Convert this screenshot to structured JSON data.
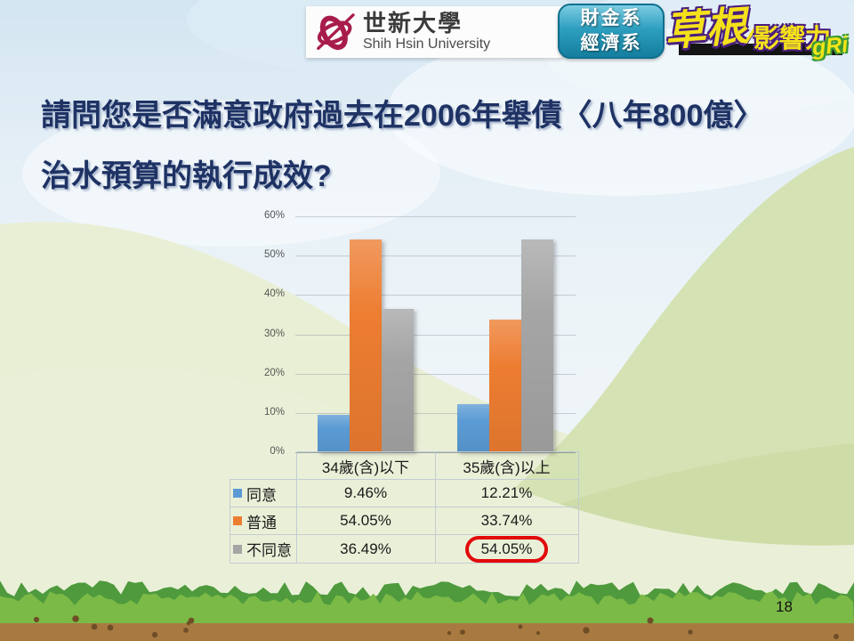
{
  "slide": {
    "page_number": "18"
  },
  "header": {
    "university": {
      "name_zh": "世新大學",
      "name_en": "Shih Hsin University",
      "logo_icon": "crimson-globe-quill",
      "logo_color": "#a81c4c"
    },
    "department_badge": {
      "line1": "財金系",
      "line2": "經濟系",
      "bg_color": "#2196ba"
    },
    "gri_logo": {
      "main": "草根",
      "sub": "影響力",
      "script": "gRi",
      "text_color": "#f5e11a",
      "outline_color": "#4a1f7e"
    }
  },
  "title": {
    "line1": "請問您是否滿意政府過去在2006年舉債〈八年800億〉",
    "line2": "治水預算的執行成效?"
  },
  "chart_data": {
    "type": "bar",
    "categories": [
      "34歲(含)以下",
      "35歲(含)以上"
    ],
    "series": [
      {
        "name": "同意",
        "color": "#5B9BD5",
        "values": [
          9.46,
          12.21
        ]
      },
      {
        "name": "普通",
        "color": "#ED7D31",
        "values": [
          54.05,
          33.74
        ]
      },
      {
        "name": "不同意",
        "color": "#A5A5A5",
        "values": [
          36.49,
          54.05
        ]
      }
    ],
    "ylim": [
      0,
      60
    ],
    "yticks": [
      "0%",
      "10%",
      "20%",
      "30%",
      "40%",
      "50%",
      "60%"
    ],
    "grid": true,
    "legend_position": "data-table-left",
    "data_table_shown": true,
    "highlight": {
      "series": "不同意",
      "category": "35歲(含)以上",
      "value_label": "54.05%",
      "color": "#E20A0A"
    }
  }
}
